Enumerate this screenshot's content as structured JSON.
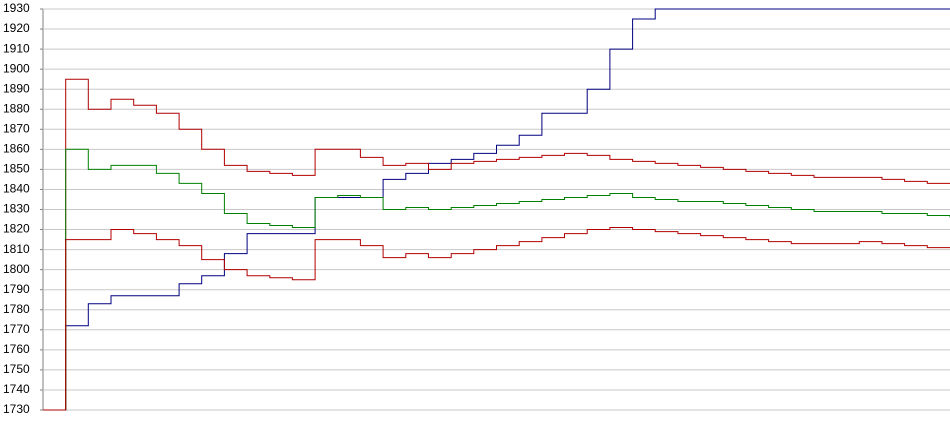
{
  "chart_data": {
    "type": "line",
    "ylim": [
      1730,
      1930
    ],
    "yticks": [
      1730,
      1740,
      1750,
      1760,
      1770,
      1780,
      1790,
      1800,
      1810,
      1820,
      1830,
      1840,
      1850,
      1860,
      1870,
      1880,
      1890,
      1900,
      1910,
      1920,
      1930
    ],
    "grid": true,
    "series": [
      {
        "color": "#000080",
        "values": [
          1730,
          1772,
          1783,
          1787,
          1787,
          1787,
          1793,
          1797,
          1808,
          1818,
          1818,
          1818,
          1836,
          1836,
          1836,
          1845,
          1848,
          1853,
          1855,
          1858,
          1862,
          1867,
          1878,
          1878,
          1890,
          1910,
          1925,
          1930,
          1930,
          1930,
          1930,
          1930,
          1930,
          1930,
          1930,
          1930,
          1930,
          1930,
          1930,
          1930,
          1930
        ]
      },
      {
        "color": "#b00000",
        "values": [
          1730,
          1895,
          1880,
          1885,
          1882,
          1878,
          1870,
          1860,
          1852,
          1849,
          1848,
          1847,
          1860,
          1860,
          1856,
          1852,
          1853,
          1850,
          1853,
          1854,
          1855,
          1856,
          1857,
          1858,
          1857,
          1855,
          1854,
          1853,
          1852,
          1851,
          1850,
          1849,
          1848,
          1847,
          1846,
          1846,
          1846,
          1845,
          1844,
          1843,
          1843
        ]
      },
      {
        "color": "#008000",
        "values": [
          1730,
          1860,
          1850,
          1852,
          1852,
          1848,
          1843,
          1838,
          1828,
          1823,
          1822,
          1821,
          1836,
          1837,
          1836,
          1830,
          1831,
          1830,
          1831,
          1832,
          1833,
          1834,
          1835,
          1836,
          1837,
          1838,
          1836,
          1835,
          1834,
          1834,
          1833,
          1832,
          1831,
          1830,
          1829,
          1829,
          1829,
          1828,
          1828,
          1827,
          1826
        ]
      },
      {
        "color": "#b00000",
        "values": [
          1730,
          1815,
          1815,
          1820,
          1818,
          1815,
          1812,
          1805,
          1800,
          1797,
          1796,
          1795,
          1815,
          1815,
          1812,
          1806,
          1808,
          1806,
          1808,
          1810,
          1812,
          1814,
          1816,
          1818,
          1820,
          1821,
          1820,
          1819,
          1818,
          1817,
          1816,
          1815,
          1814,
          1813,
          1813,
          1813,
          1814,
          1813,
          1812,
          1811,
          1811
        ]
      }
    ]
  }
}
